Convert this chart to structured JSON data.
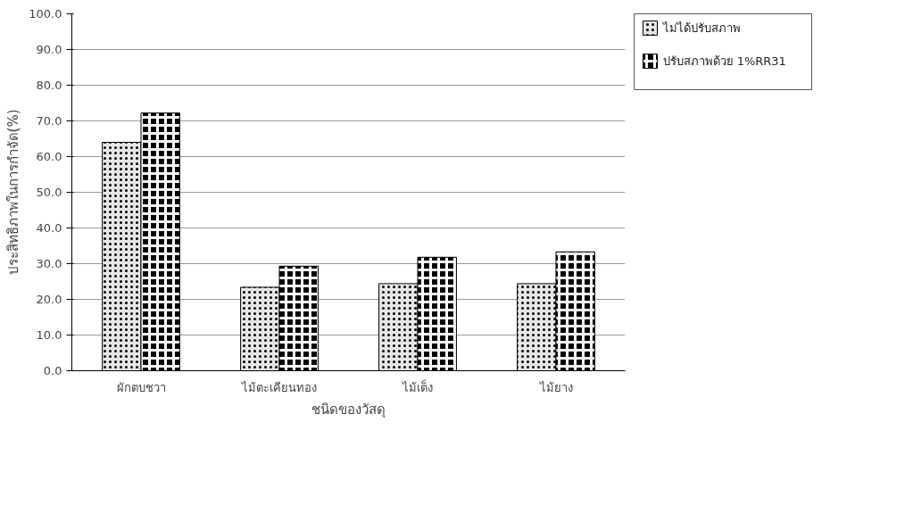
{
  "chart_data": {
    "type": "bar",
    "xlabel": "ชนิดของวัสดุ",
    "ylabel": "ประสิทธิภาพในการกำจัด(%)",
    "categories": [
      "ผักตบชวา",
      "ไม้ตะเคียนทอง",
      "ไม้เต็ง",
      "ไม้ยาง"
    ],
    "series": [
      {
        "name": "ไม่ได้ปรับสภาพ",
        "color": "#e6e6e6",
        "values": [
          64.0,
          23.4,
          24.4,
          24.4
        ]
      },
      {
        "name": "ปรับสภาพด้วย 1%RR31",
        "color": "#000000",
        "values": [
          72.2,
          29.3,
          31.8,
          33.3
        ]
      }
    ],
    "ylim": [
      0,
      100
    ],
    "yticks": [
      {
        "value": 0,
        "label": "0.0"
      },
      {
        "value": 10,
        "label": "10.0"
      },
      {
        "value": 20,
        "label": "20.0"
      },
      {
        "value": 30,
        "label": "30.0"
      },
      {
        "value": 40,
        "label": "40.0"
      },
      {
        "value": 50,
        "label": "50.0"
      },
      {
        "value": 60,
        "label": "60.0"
      },
      {
        "value": 70,
        "label": "70.0"
      },
      {
        "value": 80,
        "label": "80.0"
      },
      {
        "value": 90,
        "label": "90.0"
      },
      {
        "value": 100,
        "label": "100.0"
      }
    ],
    "grid": "y",
    "legend": "right"
  }
}
